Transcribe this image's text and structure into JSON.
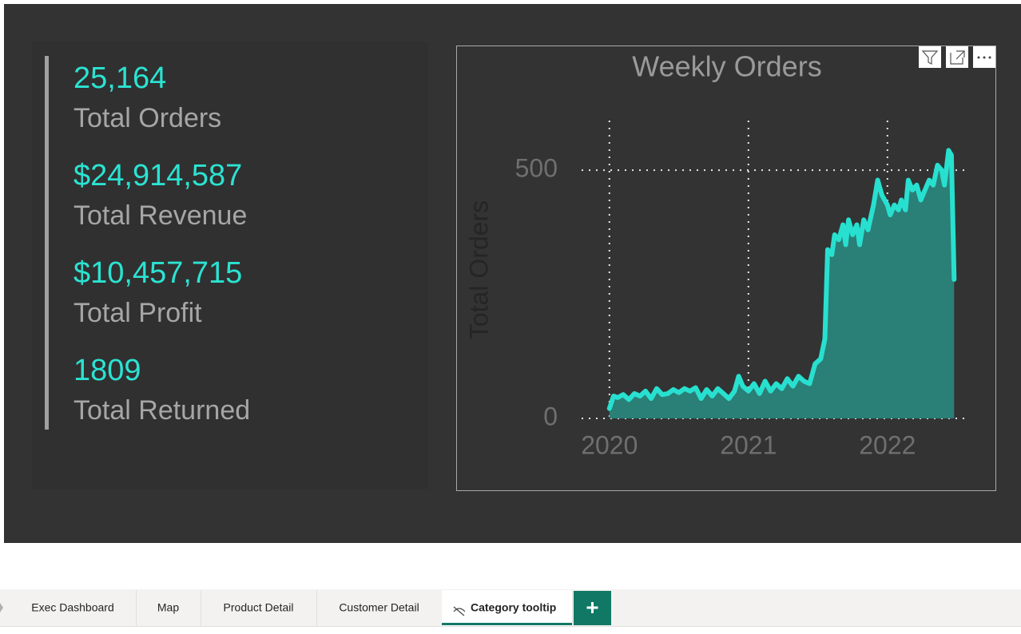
{
  "kpis": [
    {
      "value": "25,164",
      "label": "Total Orders"
    },
    {
      "value": "$24,914,587",
      "label": "Total Revenue"
    },
    {
      "value": "$10,457,715",
      "label": "Total Profit"
    },
    {
      "value": "1809",
      "label": "Total Returned"
    }
  ],
  "chart_data": {
    "type": "line",
    "title": "Weekly Orders",
    "y_label": "Total Orders",
    "x": [
      2020.0,
      2020.03,
      2020.06,
      2020.1,
      2020.14,
      2020.18,
      2020.22,
      2020.26,
      2020.3,
      2020.34,
      2020.38,
      2020.42,
      2020.46,
      2020.5,
      2020.54,
      2020.58,
      2020.62,
      2020.66,
      2020.7,
      2020.74,
      2020.78,
      2020.82,
      2020.86,
      2020.9,
      2020.93,
      2020.96,
      2021.0,
      2021.04,
      2021.08,
      2021.12,
      2021.16,
      2021.2,
      2021.24,
      2021.28,
      2021.32,
      2021.36,
      2021.4,
      2021.44,
      2021.48,
      2021.52,
      2021.55,
      2021.57,
      2021.6,
      2021.62,
      2021.65,
      2021.68,
      2021.7,
      2021.72,
      2021.75,
      2021.78,
      2021.8,
      2021.83,
      2021.86,
      2021.9,
      2021.93,
      2021.96,
      2022.0,
      2022.02,
      2022.05,
      2022.08,
      2022.1,
      2022.13,
      2022.15,
      2022.18,
      2022.21,
      2022.24,
      2022.27,
      2022.3,
      2022.33,
      2022.36,
      2022.39,
      2022.41,
      2022.44,
      2022.46,
      2022.48
    ],
    "series": [
      {
        "color": "#28e0cf",
        "area_color": "#2a7f77",
        "values": [
          20,
          45,
          42,
          48,
          38,
          50,
          45,
          55,
          40,
          60,
          48,
          50,
          58,
          52,
          60,
          55,
          62,
          40,
          58,
          45,
          60,
          50,
          40,
          55,
          85,
          65,
          55,
          70,
          50,
          75,
          55,
          70,
          60,
          80,
          65,
          85,
          75,
          70,
          110,
          120,
          160,
          340,
          330,
          370,
          360,
          390,
          350,
          400,
          370,
          390,
          350,
          400,
          380,
          430,
          480,
          450,
          430,
          410,
          430,
          420,
          440,
          420,
          480,
          460,
          470,
          440,
          460,
          480,
          470,
          510,
          500,
          470,
          540,
          530,
          280
        ]
      }
    ],
    "xlim": [
      2019.8,
      2022.57
    ],
    "ylim": [
      0,
      600
    ],
    "xticks": [
      2020,
      2021,
      2022
    ],
    "yticks": [
      0,
      500
    ],
    "grid": true,
    "area": true
  },
  "tabs": [
    "Exec Dashboard",
    "Map",
    "Product Detail",
    "Customer Detail",
    "Category tooltip"
  ],
  "active_tab": 4
}
